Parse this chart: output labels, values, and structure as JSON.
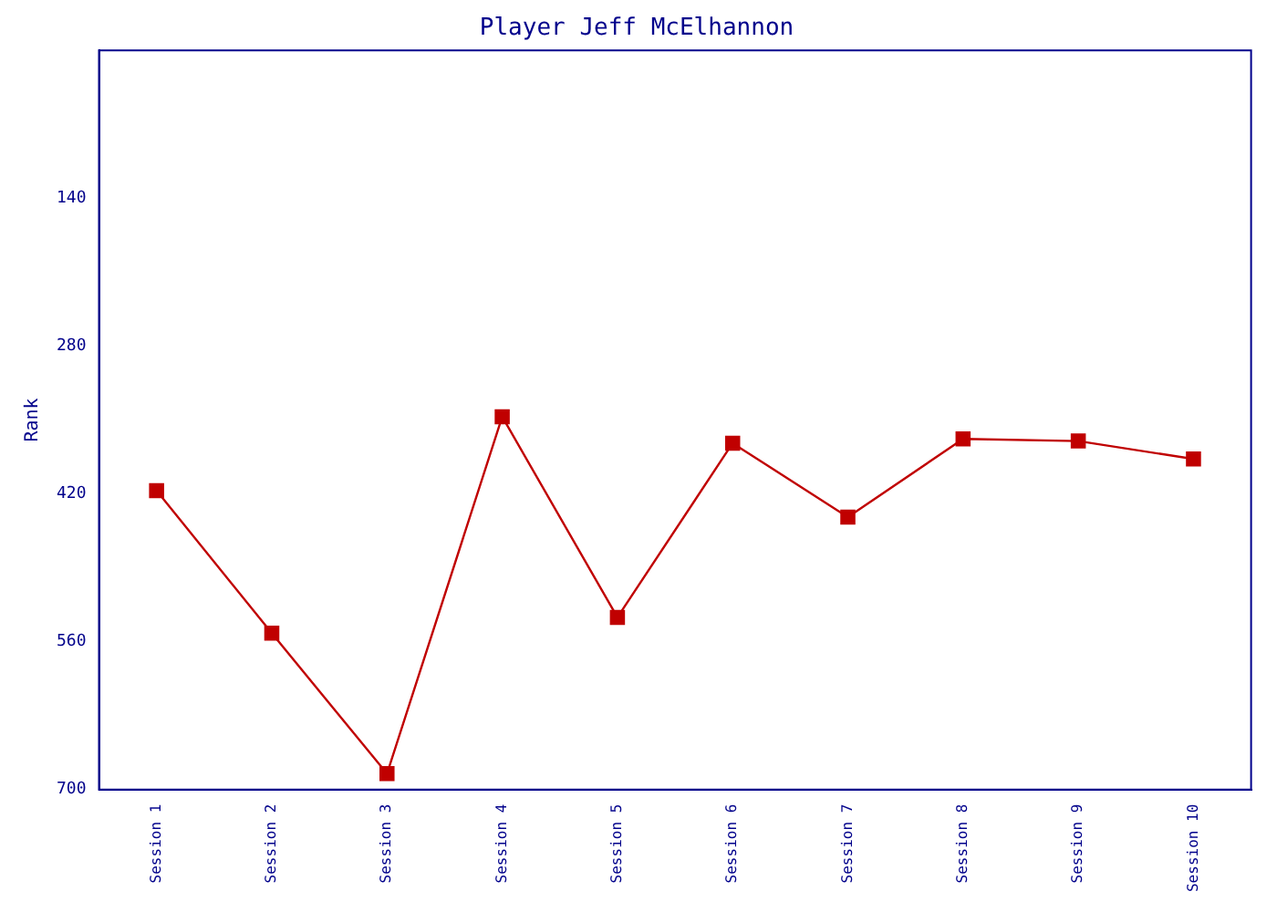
{
  "chart_data": {
    "type": "line",
    "title": "Player Jeff McElhannon",
    "ylabel": "Rank",
    "categories": [
      "Session 1",
      "Session 2",
      "Session 3",
      "Session 4",
      "Session 5",
      "Session 6",
      "Session 7",
      "Session 8",
      "Session 9",
      "Session 10"
    ],
    "series": [
      {
        "color": "#c00000",
        "values": [
          417,
          552,
          685,
          347,
          537,
          372,
          442,
          368,
          370,
          387
        ]
      }
    ],
    "ylim": [
      700,
      0
    ],
    "yticks": [
      140,
      280,
      420,
      560,
      700
    ],
    "grid": false,
    "legend": false,
    "marker": "square",
    "line_style": "solid"
  }
}
